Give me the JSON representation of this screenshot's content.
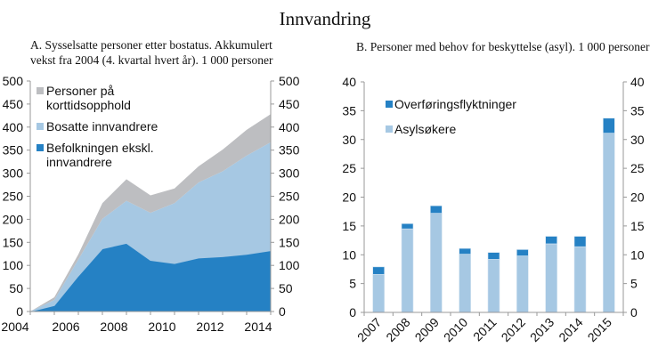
{
  "title": "Innvandring",
  "chart_data": [
    {
      "type": "area",
      "stacked": true,
      "title": "A. Sysselsatte personer etter bostatus. Akkumulert vekst fra 2004 (4. kvartal hvert år). 1 000 personer",
      "x": [
        2004,
        2005,
        2006,
        2007,
        2008,
        2009,
        2010,
        2011,
        2012,
        2013,
        2014
      ],
      "x_tick_labels": [
        "2004",
        "2006",
        "2008",
        "2010",
        "2012",
        "2014"
      ],
      "ylim": [
        0,
        500
      ],
      "y_ticks": [
        0,
        50,
        100,
        150,
        200,
        250,
        300,
        350,
        400,
        450,
        500
      ],
      "y_tick_labels": [
        "0",
        "50",
        "100",
        "150",
        "200",
        "250",
        "300",
        "350",
        "400",
        "450",
        "500"
      ],
      "secondary_y_ticks": true,
      "grid": false,
      "legend_position": "top-left",
      "series": [
        {
          "name": "Befolkningen ekskl. innvandrere",
          "color": "#2581c4",
          "values": [
            0,
            13,
            77,
            136,
            148,
            111,
            104,
            116,
            119,
            124,
            132
          ]
        },
        {
          "name": "Bosatte innvandrere",
          "color": "#a6c8e3",
          "values": [
            0,
            12,
            36,
            65,
            92,
            103,
            131,
            164,
            185,
            214,
            235
          ]
        },
        {
          "name": "Personer på korttidsopphold",
          "color": "#bdbec1",
          "values": [
            0,
            6,
            11,
            34,
            47,
            38,
            32,
            35,
            47,
            56,
            61
          ]
        }
      ],
      "legend": [
        {
          "label_lines": [
            "Personer på",
            "korttidsopphold"
          ],
          "color": "#bdbec1"
        },
        {
          "label_lines": [
            "Bosatte innvandrere"
          ],
          "color": "#a6c8e3"
        },
        {
          "label_lines": [
            "Befolkningen ekskl.",
            "innvandrere"
          ],
          "color": "#2581c4"
        }
      ]
    },
    {
      "type": "bar",
      "stacked": true,
      "title": "B. Personer med behov for beskyttelse (asyl). 1 000 personer",
      "categories": [
        "2007",
        "2008",
        "2009",
        "2010",
        "2011",
        "2012",
        "2013",
        "2014",
        "2015"
      ],
      "ylim": [
        0,
        40
      ],
      "y_ticks": [
        0,
        5,
        10,
        15,
        20,
        25,
        30,
        35,
        40
      ],
      "y_tick_labels": [
        "0",
        "5",
        "10",
        "15",
        "20",
        "25",
        "30",
        "35",
        "40"
      ],
      "secondary_y_ticks": true,
      "grid": false,
      "legend_position": "top-left",
      "series": [
        {
          "name": "Asylsøkere",
          "color": "#a6c8e3",
          "values": [
            6.6,
            14.5,
            17.2,
            10.1,
            9.2,
            9.8,
            11.9,
            11.4,
            31.1
          ]
        },
        {
          "name": "Overføringsflyktninger",
          "color": "#2581c4",
          "values": [
            1.3,
            0.9,
            1.3,
            1.0,
            1.2,
            1.1,
            1.3,
            1.8,
            2.6
          ]
        }
      ],
      "legend": [
        {
          "label_lines": [
            "Overføringsflyktninger"
          ],
          "color": "#2581c4"
        },
        {
          "label_lines": [
            "Asylsøkere"
          ],
          "color": "#a6c8e3"
        }
      ]
    }
  ]
}
